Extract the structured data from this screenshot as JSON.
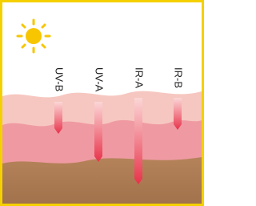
{
  "arrows": [
    {
      "label": "UV-B"
    },
    {
      "label": "UV-A"
    },
    {
      "label": "IR-A"
    },
    {
      "label": "IR-B"
    }
  ]
}
